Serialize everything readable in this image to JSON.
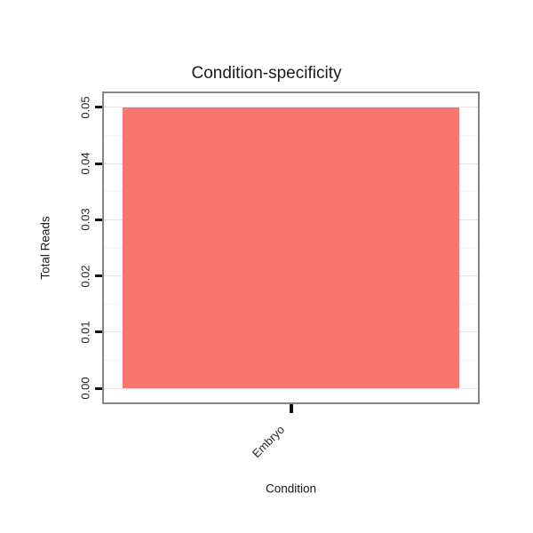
{
  "chart_data": {
    "type": "bar",
    "title": "Condition-specificity",
    "xlabel": "Condition",
    "ylabel": "Total Reads",
    "categories": [
      "Embryo"
    ],
    "values": [
      0.05
    ],
    "ylim": [
      0,
      0.05
    ],
    "yticks": [
      "0.00",
      "0.01",
      "0.02",
      "0.03",
      "0.04",
      "0.05"
    ],
    "ytick_values": [
      0,
      0.01,
      0.02,
      0.03,
      0.04,
      0.05
    ],
    "bar_color": "#F8766D",
    "panel_border_color": "#858585",
    "gridline_color": "#e4e4e4",
    "legend": "none",
    "grid": true
  }
}
